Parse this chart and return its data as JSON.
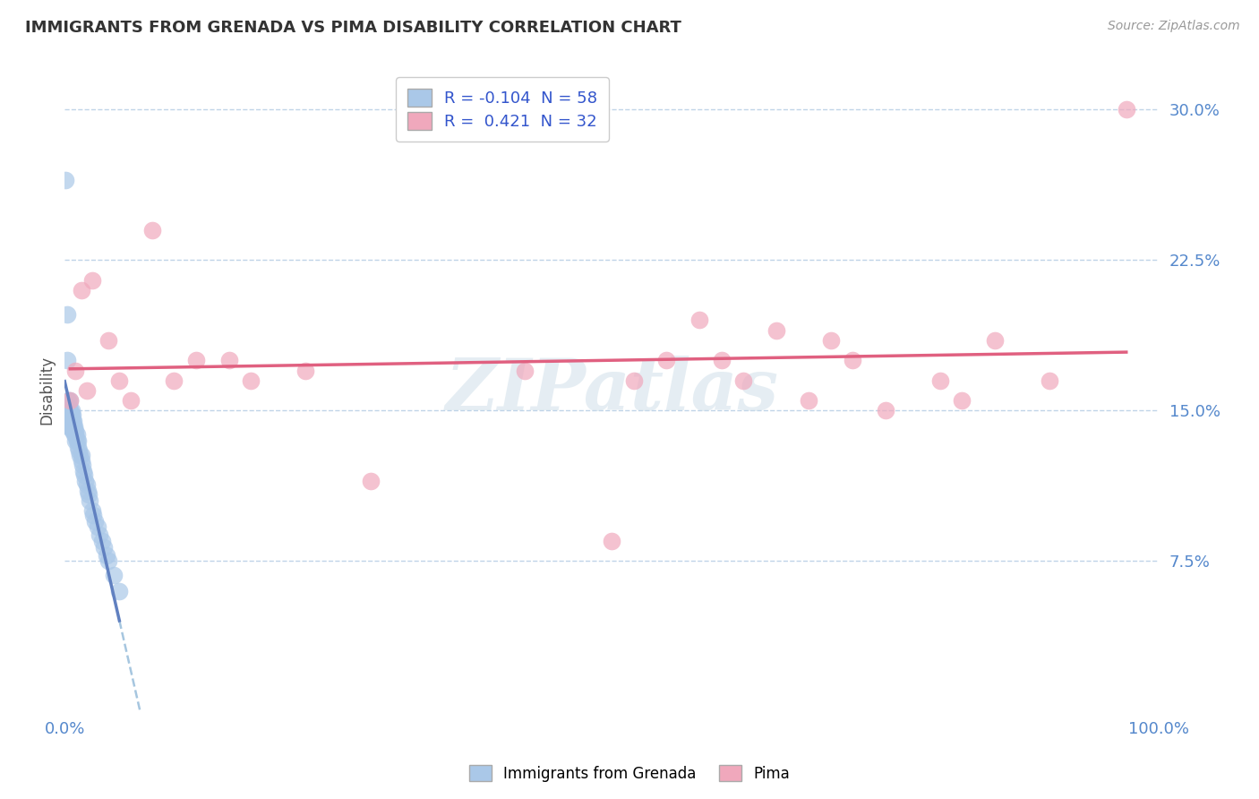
{
  "title": "IMMIGRANTS FROM GRENADA VS PIMA DISABILITY CORRELATION CHART",
  "source": "Source: ZipAtlas.com",
  "ylabel": "Disability",
  "x_min": 0.0,
  "x_max": 1.0,
  "y_min": 0.0,
  "y_max": 0.32,
  "x_ticks": [
    0.0,
    1.0
  ],
  "x_tick_labels": [
    "0.0%",
    "100.0%"
  ],
  "y_ticks": [
    0.075,
    0.15,
    0.225,
    0.3
  ],
  "y_tick_labels": [
    "7.5%",
    "15.0%",
    "22.5%",
    "30.0%"
  ],
  "blue_R": -0.104,
  "blue_N": 58,
  "pink_R": 0.421,
  "pink_N": 32,
  "blue_color": "#aac8e8",
  "pink_color": "#f0a8bc",
  "blue_line_color": "#6080c0",
  "pink_line_color": "#e06080",
  "blue_dashed_color": "#90b8d8",
  "background_color": "#ffffff",
  "grid_color": "#c0d4e8",
  "watermark": "ZIPatlas",
  "legend_label_blue": "Immigrants from Grenada",
  "legend_label_pink": "Pima",
  "blue_x": [
    0.001,
    0.002,
    0.002,
    0.003,
    0.003,
    0.003,
    0.004,
    0.004,
    0.004,
    0.005,
    0.005,
    0.005,
    0.005,
    0.005,
    0.006,
    0.006,
    0.006,
    0.006,
    0.007,
    0.007,
    0.007,
    0.007,
    0.008,
    0.008,
    0.008,
    0.009,
    0.009,
    0.009,
    0.01,
    0.01,
    0.01,
    0.011,
    0.011,
    0.012,
    0.012,
    0.013,
    0.014,
    0.015,
    0.015,
    0.016,
    0.017,
    0.018,
    0.019,
    0.02,
    0.021,
    0.022,
    0.023,
    0.025,
    0.026,
    0.028,
    0.03,
    0.032,
    0.034,
    0.036,
    0.038,
    0.04,
    0.045,
    0.05
  ],
  "blue_y": [
    0.265,
    0.198,
    0.175,
    0.155,
    0.148,
    0.142,
    0.152,
    0.148,
    0.145,
    0.155,
    0.15,
    0.148,
    0.145,
    0.142,
    0.15,
    0.148,
    0.145,
    0.142,
    0.148,
    0.145,
    0.142,
    0.14,
    0.145,
    0.142,
    0.14,
    0.142,
    0.14,
    0.138,
    0.14,
    0.138,
    0.135,
    0.138,
    0.135,
    0.135,
    0.132,
    0.13,
    0.128,
    0.128,
    0.125,
    0.123,
    0.12,
    0.118,
    0.115,
    0.113,
    0.11,
    0.108,
    0.105,
    0.1,
    0.098,
    0.095,
    0.092,
    0.088,
    0.085,
    0.082,
    0.078,
    0.075,
    0.068,
    0.06
  ],
  "pink_x": [
    0.005,
    0.01,
    0.015,
    0.02,
    0.025,
    0.04,
    0.05,
    0.06,
    0.08,
    0.1,
    0.12,
    0.15,
    0.17,
    0.22,
    0.28,
    0.42,
    0.5,
    0.52,
    0.55,
    0.58,
    0.6,
    0.62,
    0.65,
    0.68,
    0.7,
    0.72,
    0.75,
    0.8,
    0.82,
    0.85,
    0.9,
    0.97
  ],
  "pink_y": [
    0.155,
    0.17,
    0.21,
    0.16,
    0.215,
    0.185,
    0.165,
    0.155,
    0.24,
    0.165,
    0.175,
    0.175,
    0.165,
    0.17,
    0.115,
    0.17,
    0.085,
    0.165,
    0.175,
    0.195,
    0.175,
    0.165,
    0.19,
    0.155,
    0.185,
    0.175,
    0.15,
    0.165,
    0.155,
    0.185,
    0.165,
    0.3
  ]
}
